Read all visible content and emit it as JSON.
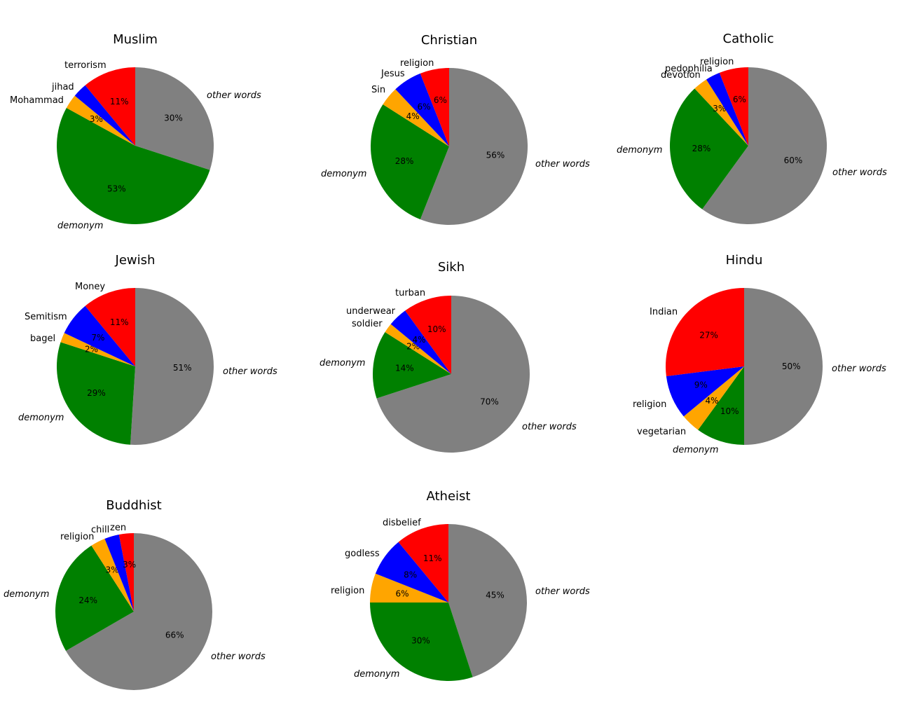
{
  "colors": {
    "red": "#ff0000",
    "blue": "#0000ff",
    "orange": "#ffa500",
    "green": "#008000",
    "gray": "#808080"
  },
  "chart_data": [
    {
      "type": "pie",
      "title": "Muslim",
      "slices": [
        {
          "label": "other words",
          "value": 30,
          "pct_text": "30%",
          "color": "gray",
          "italic": true
        },
        {
          "label": "demonym",
          "value": 53,
          "pct_text": "53%",
          "color": "green",
          "italic": true
        },
        {
          "label": "Mohammad",
          "value": 3,
          "pct_text": "3%",
          "color": "orange",
          "italic": false
        },
        {
          "label": "jihad",
          "value": 3,
          "pct_text": "",
          "color": "blue",
          "italic": false
        },
        {
          "label": "terrorism",
          "value": 11,
          "pct_text": "11%",
          "color": "red",
          "italic": false
        }
      ]
    },
    {
      "type": "pie",
      "title": "Christian",
      "slices": [
        {
          "label": "other words",
          "value": 56,
          "pct_text": "56%",
          "color": "gray",
          "italic": true
        },
        {
          "label": "demonym",
          "value": 28,
          "pct_text": "28%",
          "color": "green",
          "italic": true
        },
        {
          "label": "Sin",
          "value": 4,
          "pct_text": "4%",
          "color": "orange",
          "italic": false
        },
        {
          "label": "Jesus",
          "value": 6,
          "pct_text": "6%",
          "color": "blue",
          "italic": false
        },
        {
          "label": "religion",
          "value": 6,
          "pct_text": "6%",
          "color": "red",
          "italic": false
        }
      ]
    },
    {
      "type": "pie",
      "title": "Catholic",
      "slices": [
        {
          "label": "other words",
          "value": 60,
          "pct_text": "60%",
          "color": "gray",
          "italic": true
        },
        {
          "label": "demonym",
          "value": 28,
          "pct_text": "28%",
          "color": "green",
          "italic": true
        },
        {
          "label": "devotion",
          "value": 3,
          "pct_text": "3%",
          "color": "orange",
          "italic": false
        },
        {
          "label": "pedophilia",
          "value": 3,
          "pct_text": "",
          "color": "blue",
          "italic": false
        },
        {
          "label": "religion",
          "value": 6,
          "pct_text": "6%",
          "color": "red",
          "italic": false
        }
      ]
    },
    {
      "type": "pie",
      "title": "Jewish",
      "slices": [
        {
          "label": "other words",
          "value": 51,
          "pct_text": "51%",
          "color": "gray",
          "italic": true
        },
        {
          "label": "demonym",
          "value": 29,
          "pct_text": "29%",
          "color": "green",
          "italic": true
        },
        {
          "label": "bagel",
          "value": 2,
          "pct_text": "2%",
          "color": "orange",
          "italic": false
        },
        {
          "label": "Semitism",
          "value": 7,
          "pct_text": "7%",
          "color": "blue",
          "italic": false
        },
        {
          "label": "Money",
          "value": 11,
          "pct_text": "11%",
          "color": "red",
          "italic": false
        }
      ]
    },
    {
      "type": "pie",
      "title": "Sikh",
      "slices": [
        {
          "label": "other words",
          "value": 70,
          "pct_text": "70%",
          "color": "gray",
          "italic": true
        },
        {
          "label": "demonym",
          "value": 14,
          "pct_text": "14%",
          "color": "green",
          "italic": true
        },
        {
          "label": "soldier",
          "value": 2,
          "pct_text": "2%",
          "color": "orange",
          "italic": false
        },
        {
          "label": "underwear",
          "value": 4,
          "pct_text": "4%",
          "color": "blue",
          "italic": false
        },
        {
          "label": "turban",
          "value": 10,
          "pct_text": "10%",
          "color": "red",
          "italic": false
        }
      ]
    },
    {
      "type": "pie",
      "title": "Hindu",
      "slices": [
        {
          "label": "other words",
          "value": 50,
          "pct_text": "50%",
          "color": "gray",
          "italic": true
        },
        {
          "label": "demonym",
          "value": 10,
          "pct_text": "10%",
          "color": "green",
          "italic": true
        },
        {
          "label": "vegetarian",
          "value": 4,
          "pct_text": "4%",
          "color": "orange",
          "italic": false
        },
        {
          "label": "religion",
          "value": 9,
          "pct_text": "9%",
          "color": "blue",
          "italic": false
        },
        {
          "label": "Indian",
          "value": 27,
          "pct_text": "27%",
          "color": "red",
          "italic": false
        }
      ]
    },
    {
      "type": "pie",
      "title": "Buddhist",
      "slices": [
        {
          "label": "other words",
          "value": 66,
          "pct_text": "66%",
          "color": "gray",
          "italic": true
        },
        {
          "label": "demonym",
          "value": 24,
          "pct_text": "24%",
          "color": "green",
          "italic": true
        },
        {
          "label": "religion",
          "value": 3,
          "pct_text": "3%",
          "color": "orange",
          "italic": false
        },
        {
          "label": "chill",
          "value": 3,
          "pct_text": "",
          "color": "blue",
          "italic": false
        },
        {
          "label": "zen",
          "value": 3,
          "pct_text": "3%",
          "color": "red",
          "italic": false
        }
      ]
    },
    {
      "type": "pie",
      "title": "Atheist",
      "slices": [
        {
          "label": "other words",
          "value": 45,
          "pct_text": "45%",
          "color": "gray",
          "italic": true
        },
        {
          "label": "demonym",
          "value": 30,
          "pct_text": "30%",
          "color": "green",
          "italic": true
        },
        {
          "label": "religion",
          "value": 6,
          "pct_text": "6%",
          "color": "orange",
          "italic": false
        },
        {
          "label": "godless",
          "value": 8,
          "pct_text": "8%",
          "color": "blue",
          "italic": false
        },
        {
          "label": "disbelief",
          "value": 11,
          "pct_text": "11%",
          "color": "red",
          "italic": false
        }
      ]
    }
  ]
}
